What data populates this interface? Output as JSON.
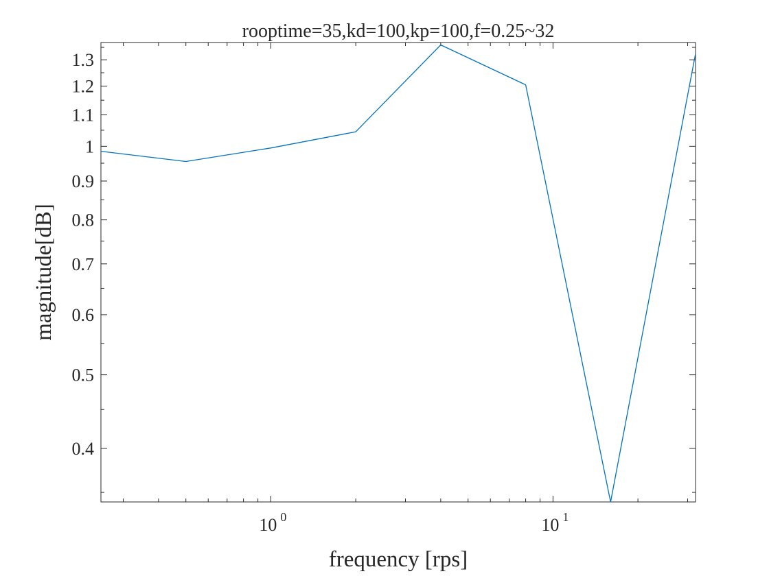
{
  "chart_data": {
    "type": "line",
    "title": "rooptime=35,kd=100,kp=100,f=0.25~32",
    "xlabel": "frequency [rps]",
    "ylabel": "magnitude[dB]",
    "xscale": "log",
    "yscale": "log",
    "xlim": [
      0.25,
      32
    ],
    "ylim": [
      0.34,
      1.37
    ],
    "x_ticks": [
      {
        "value": 1,
        "base": "10",
        "exp": "0"
      },
      {
        "value": 10,
        "base": "10",
        "exp": "1"
      }
    ],
    "y_ticks": [
      {
        "value": 0.4,
        "label": "0.4"
      },
      {
        "value": 0.5,
        "label": "0.5"
      },
      {
        "value": 0.6,
        "label": "0.6"
      },
      {
        "value": 0.7,
        "label": "0.7"
      },
      {
        "value": 0.8,
        "label": "0.8"
      },
      {
        "value": 0.9,
        "label": "0.9"
      },
      {
        "value": 1.0,
        "label": "1"
      },
      {
        "value": 1.1,
        "label": "1.1"
      },
      {
        "value": 1.2,
        "label": "1.2"
      },
      {
        "value": 1.3,
        "label": "1.3"
      }
    ],
    "grid": false,
    "box": true,
    "series": [
      {
        "color": "#0072BD",
        "x": [
          0.25,
          0.5,
          1,
          2,
          4,
          8,
          16,
          32
        ],
        "y": [
          0.985,
          0.955,
          0.995,
          1.045,
          1.36,
          1.205,
          0.34,
          1.325
        ]
      }
    ]
  }
}
